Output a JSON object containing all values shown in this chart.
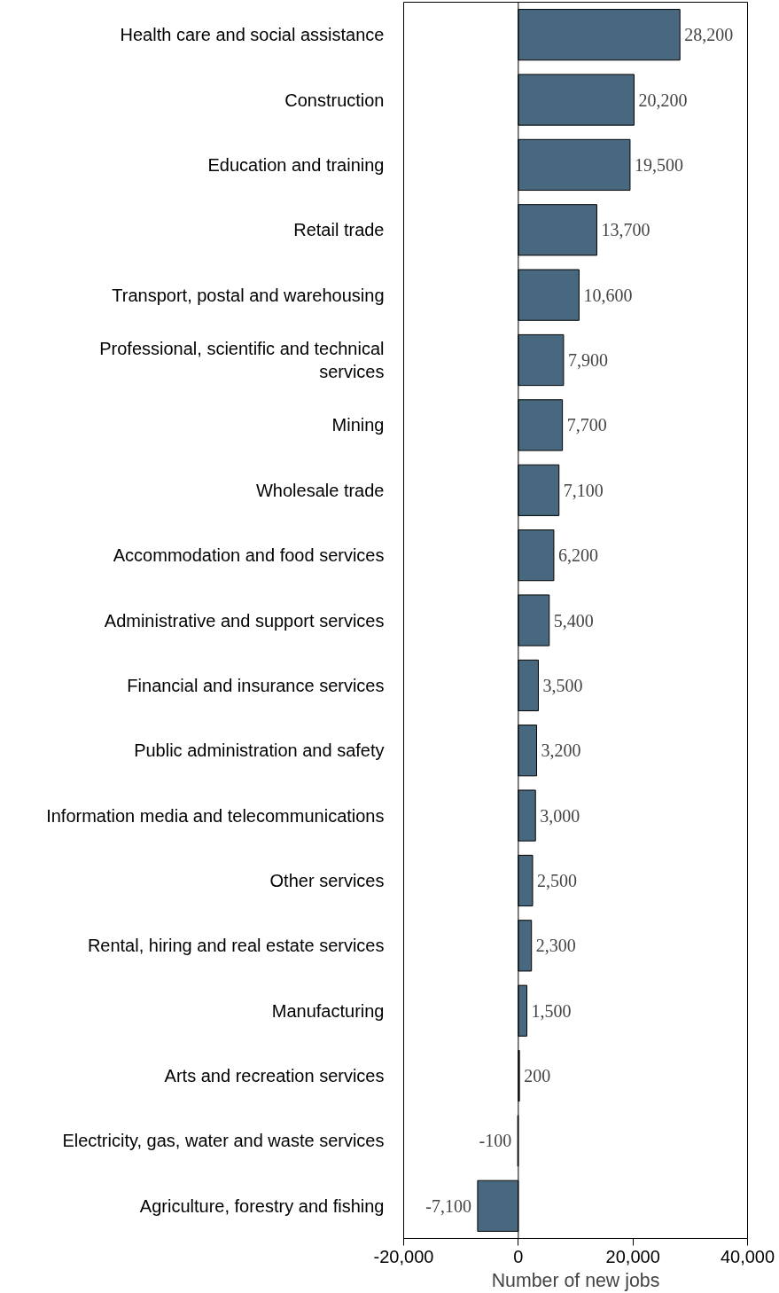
{
  "chart_data": {
    "type": "bar",
    "orientation": "horizontal",
    "xlabel": "Number of new jobs",
    "categories": [
      "Health care and social assistance",
      "Construction",
      "Education and training",
      "Retail trade",
      "Transport, postal and warehousing",
      "Professional, scientific and technical services",
      "Mining",
      "Wholesale trade",
      "Accommodation and food services",
      "Administrative and support services",
      "Financial and insurance services",
      "Public administration and safety",
      "Information media and telecommunications",
      "Other services",
      "Rental, hiring and real estate services",
      "Manufacturing",
      "Arts and recreation services",
      "Electricity, gas, water and waste services",
      "Agriculture, forestry and fishing"
    ],
    "values": [
      28200,
      20200,
      19500,
      13700,
      10600,
      7900,
      7700,
      7100,
      6200,
      5400,
      3500,
      3200,
      3000,
      2500,
      2300,
      1500,
      200,
      -100,
      -7100
    ],
    "color": "#47687e",
    "xlim": [
      -20000,
      40000
    ],
    "xticks": [
      {
        "value": -20000,
        "label": "-20,000"
      },
      0,
      {
        "value": 20000,
        "label": "20,000"
      },
      {
        "value": 40000,
        "label": "40,000"
      }
    ],
    "value_labels": [
      "28,200",
      "20,200",
      "19,500",
      "13,700",
      "10,600",
      "7,900",
      "7,700",
      "7,100",
      "6,200",
      "5,400",
      "3,500",
      "3,200",
      "3,000",
      "2,500",
      "2,300",
      "1,500",
      "200",
      "-100",
      "-7,100"
    ],
    "ref_lines": [
      {
        "axis": "x",
        "value": 0,
        "color": "#000000"
      }
    ]
  }
}
